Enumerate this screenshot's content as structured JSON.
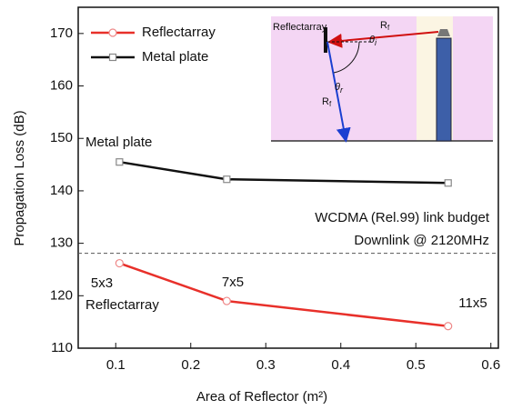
{
  "chart_data": {
    "type": "line",
    "x_label": "Area of Reflector (m²)",
    "y_label": "Propagation Loss (dB)",
    "xlim": [
      0.05,
      0.61
    ],
    "ylim": [
      110,
      175
    ],
    "xticks": [
      0.1,
      0.2,
      0.3,
      0.4,
      0.5,
      0.6
    ],
    "yticks": [
      110,
      120,
      130,
      140,
      150,
      160,
      170
    ],
    "legend": "top-left",
    "series": [
      {
        "name": "Reflectarray",
        "color": "#e8302a",
        "marker": "circle",
        "x": [
          0.105,
          0.248,
          0.543
        ],
        "values": [
          126.2,
          119,
          114.2
        ]
      },
      {
        "name": "Metal plate",
        "color": "#111111",
        "marker": "square",
        "x": [
          0.105,
          0.248,
          0.543
        ],
        "values": [
          145.5,
          142.2,
          141.5
        ]
      }
    ],
    "reference_line": {
      "value": 128.1,
      "style": "dashed"
    },
    "annotations": [
      "Metal plate",
      "WCDMA (Rel.99) link budget",
      "Downlink @ 2120MHz",
      "5x3",
      "Reflectarray",
      "7x5",
      "11x5"
    ],
    "inset": {
      "title": "Reflectarray",
      "incident": {
        "main": "R",
        "sub": "f"
      },
      "reflected": {
        "main": "R",
        "sub": "f"
      },
      "angle_i": {
        "main": "θ",
        "sub": "i"
      },
      "angle_r": {
        "main": "θ",
        "sub": "r"
      }
    }
  }
}
